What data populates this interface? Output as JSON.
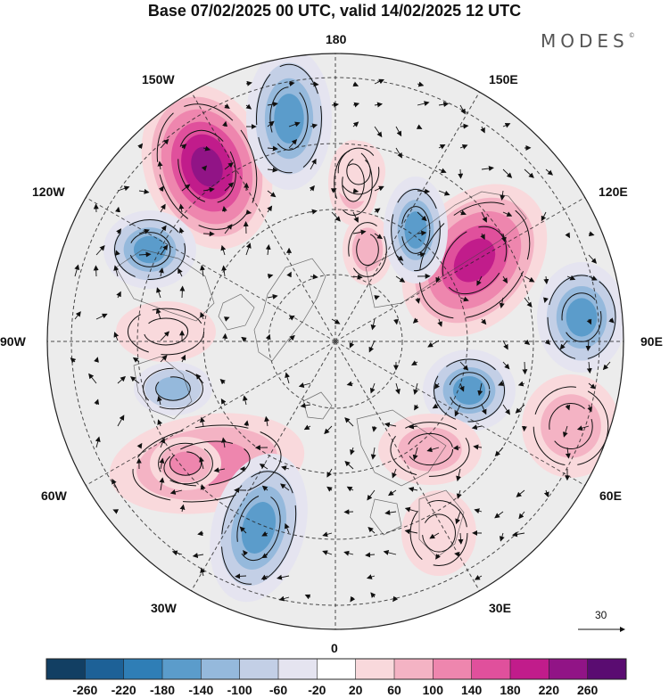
{
  "title": "Base 07/02/2025 00 UTC, valid 14/02/2025 12 UTC",
  "brand": {
    "name": "MODES",
    "symbol": "©"
  },
  "lon_labels": {
    "n": "180",
    "s": "0",
    "w": "90W",
    "e": "90E",
    "nw_upper": "150W",
    "nw_lower": "120W",
    "ne_upper": "150E",
    "ne_lower": "120E",
    "sw_upper": "60W",
    "sw_lower": "30W",
    "se_upper": "60E",
    "se_lower": "30E"
  },
  "reference_vector": {
    "value": "30"
  },
  "colorbar": {
    "ticks": [
      "-260",
      "-220",
      "-180",
      "-140",
      "-100",
      "-60",
      "-20",
      "20",
      "60",
      "100",
      "140",
      "180",
      "220",
      "260"
    ],
    "colors": [
      "#123f63",
      "#1d6197",
      "#2f7eb6",
      "#5b9ccb",
      "#95b9dc",
      "#c3cfe6",
      "#e5e4f0",
      "#ffffff",
      "#f9d9dc",
      "#f4b3c4",
      "#ee86ae",
      "#e0509c",
      "#c11c8b",
      "#911486",
      "#5a0c71"
    ]
  },
  "anomaly_centers": [
    {
      "level": 240,
      "color_idx": 14
    },
    {
      "level": -140,
      "color_idx": 3
    },
    {
      "level": -160,
      "color_idx": 2
    },
    {
      "level": 60,
      "color_idx": 9
    },
    {
      "level": -140,
      "color_idx": 3
    },
    {
      "level": 140,
      "color_idx": 11
    },
    {
      "level": -100,
      "color_idx": 4
    },
    {
      "level": -160,
      "color_idx": 2
    },
    {
      "level": 80,
      "color_idx": 9
    },
    {
      "level": 100,
      "color_idx": 10
    },
    {
      "level": 190,
      "color_idx": 12
    },
    {
      "level": -170,
      "color_idx": 2
    },
    {
      "level": 80,
      "color_idx": 9
    },
    {
      "level": 60,
      "color_idx": 8
    },
    {
      "level": 80,
      "color_idx": 9
    }
  ]
}
